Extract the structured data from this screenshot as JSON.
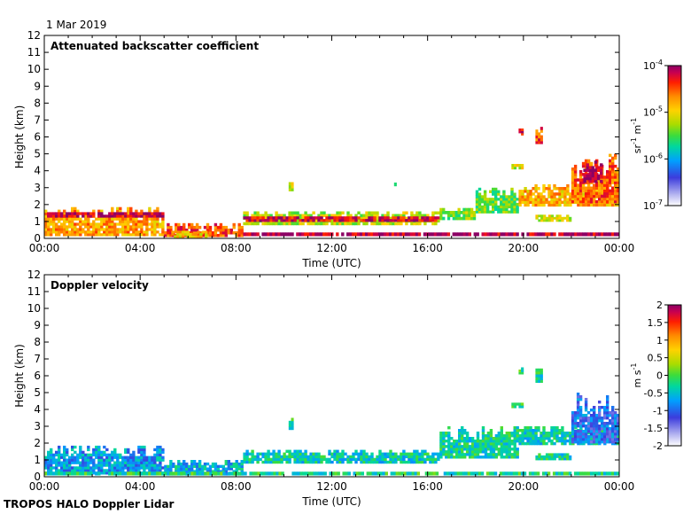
{
  "date": "1 Mar 2019",
  "footer": "TROPOS HALO Doppler Lidar",
  "chart_data": [
    {
      "type": "heatmap",
      "panel_title": "Attenuated backscatter coefficient",
      "xlabel": "Time (UTC)",
      "ylabel": "Height (km)",
      "x_ticks": [
        "00:00",
        "04:00",
        "08:00",
        "12:00",
        "16:00",
        "20:00",
        "00:00"
      ],
      "xlim_hours": [
        0,
        24
      ],
      "ylim": [
        0,
        12
      ],
      "y_ticks": [
        0,
        1,
        2,
        3,
        4,
        5,
        6,
        7,
        8,
        9,
        10,
        11,
        12
      ],
      "colorbar": {
        "scale": "log",
        "range": [
          1e-07,
          0.0001
        ],
        "tick_values": [
          1e-07,
          1e-06,
          1e-05,
          0.0001
        ],
        "tick_labels": [
          {
            "base": "10",
            "exp": "-7"
          },
          {
            "base": "10",
            "exp": "-6"
          },
          {
            "base": "10",
            "exp": "-5"
          },
          {
            "base": "10",
            "exp": "-4"
          }
        ],
        "unit": {
          "a": "sr",
          "a_exp": "-1",
          "b": "m",
          "b_exp": "-1"
        }
      },
      "features": [
        {
          "t0": 0.0,
          "t1": 5.0,
          "h0": 0.15,
          "h1": 1.85,
          "level": 0.75
        },
        {
          "t0": 0.0,
          "t1": 5.0,
          "h0": 1.25,
          "h1": 1.55,
          "level": 0.95
        },
        {
          "t0": 5.0,
          "t1": 8.3,
          "h0": 0.1,
          "h1": 0.9,
          "level": 0.85
        },
        {
          "t0": 5.3,
          "t1": 6.8,
          "h0": 0.05,
          "h1": 0.45,
          "level": 0.68
        },
        {
          "t0": 8.3,
          "t1": 16.5,
          "h0": 0.8,
          "h1": 1.6,
          "level": 0.6
        },
        {
          "t0": 8.3,
          "t1": 16.5,
          "h0": 1.0,
          "h1": 1.3,
          "level": 0.93
        },
        {
          "t0": 8.3,
          "t1": 24.0,
          "h0": 0.15,
          "h1": 0.35,
          "level": 0.97
        },
        {
          "t0": 16.5,
          "t1": 18.0,
          "h0": 1.1,
          "h1": 1.8,
          "level": 0.55
        },
        {
          "t0": 18.0,
          "t1": 19.8,
          "h0": 1.5,
          "h1": 3.0,
          "level": 0.52
        },
        {
          "t0": 19.5,
          "t1": 20.0,
          "h0": 4.1,
          "h1": 4.4,
          "level": 0.62
        },
        {
          "t0": 19.8,
          "t1": 24.0,
          "h0": 1.9,
          "h1": 3.2,
          "level": 0.72
        },
        {
          "t0": 20.5,
          "t1": 22.0,
          "h0": 1.0,
          "h1": 1.4,
          "level": 0.63
        },
        {
          "t0": 22.0,
          "t1": 24.0,
          "h0": 2.1,
          "h1": 5.0,
          "level": 0.82
        },
        {
          "t0": 22.5,
          "t1": 23.3,
          "h0": 3.3,
          "h1": 4.6,
          "level": 0.98
        },
        {
          "t0": 19.8,
          "t1": 20.0,
          "h0": 6.1,
          "h1": 6.5,
          "level": 0.9
        },
        {
          "t0": 20.5,
          "t1": 20.8,
          "h0": 5.6,
          "h1": 6.6,
          "level": 0.85
        },
        {
          "t0": 10.2,
          "t1": 10.4,
          "h0": 2.8,
          "h1": 3.5,
          "level": 0.62
        },
        {
          "t0": 14.6,
          "t1": 14.7,
          "h0": 3.1,
          "h1": 3.3,
          "level": 0.55
        }
      ]
    },
    {
      "type": "heatmap",
      "panel_title": "Doppler velocity",
      "xlabel": "Time (UTC)",
      "ylabel": "Height (km)",
      "x_ticks": [
        "00:00",
        "04:00",
        "08:00",
        "12:00",
        "16:00",
        "20:00",
        "00:00"
      ],
      "xlim_hours": [
        0,
        24
      ],
      "ylim": [
        0,
        12
      ],
      "y_ticks": [
        0,
        1,
        2,
        3,
        4,
        5,
        6,
        7,
        8,
        9,
        10,
        11,
        12
      ],
      "colorbar": {
        "scale": "linear",
        "range": [
          -2,
          2
        ],
        "tick_values": [
          -2,
          -1.5,
          -1,
          -0.5,
          0,
          0.5,
          1,
          1.5,
          2
        ],
        "tick_labels": [
          "-2",
          "-1.5",
          "-1",
          "-0.5",
          "0",
          "0.5",
          "1",
          "1.5",
          "2"
        ],
        "unit": {
          "a": "m",
          "a_exp": "",
          "b": "s",
          "b_exp": "-1"
        }
      },
      "features": [
        {
          "t0": 0.0,
          "t1": 5.0,
          "h0": 0.15,
          "h1": 1.85,
          "level": 0.32
        },
        {
          "t0": 5.0,
          "t1": 8.3,
          "h0": 0.1,
          "h1": 1.0,
          "level": 0.35
        },
        {
          "t0": 8.3,
          "t1": 16.5,
          "h0": 0.8,
          "h1": 1.6,
          "level": 0.4
        },
        {
          "t0": 0.0,
          "t1": 24.0,
          "h0": 0.1,
          "h1": 0.3,
          "level": 0.45
        },
        {
          "t0": 16.5,
          "t1": 19.8,
          "h0": 1.1,
          "h1": 3.0,
          "level": 0.42
        },
        {
          "t0": 19.5,
          "t1": 20.0,
          "h0": 4.1,
          "h1": 4.4,
          "level": 0.45
        },
        {
          "t0": 19.8,
          "t1": 24.0,
          "h0": 1.9,
          "h1": 3.0,
          "level": 0.4
        },
        {
          "t0": 20.5,
          "t1": 22.0,
          "h0": 1.0,
          "h1": 1.4,
          "level": 0.42
        },
        {
          "t0": 22.0,
          "t1": 24.0,
          "h0": 2.0,
          "h1": 5.0,
          "level": 0.25
        },
        {
          "t0": 19.8,
          "t1": 20.0,
          "h0": 6.1,
          "h1": 6.5,
          "level": 0.45
        },
        {
          "t0": 20.5,
          "t1": 20.8,
          "h0": 5.6,
          "h1": 6.6,
          "level": 0.42
        },
        {
          "t0": 10.2,
          "t1": 10.4,
          "h0": 2.8,
          "h1": 3.5,
          "level": 0.45
        }
      ]
    }
  ]
}
